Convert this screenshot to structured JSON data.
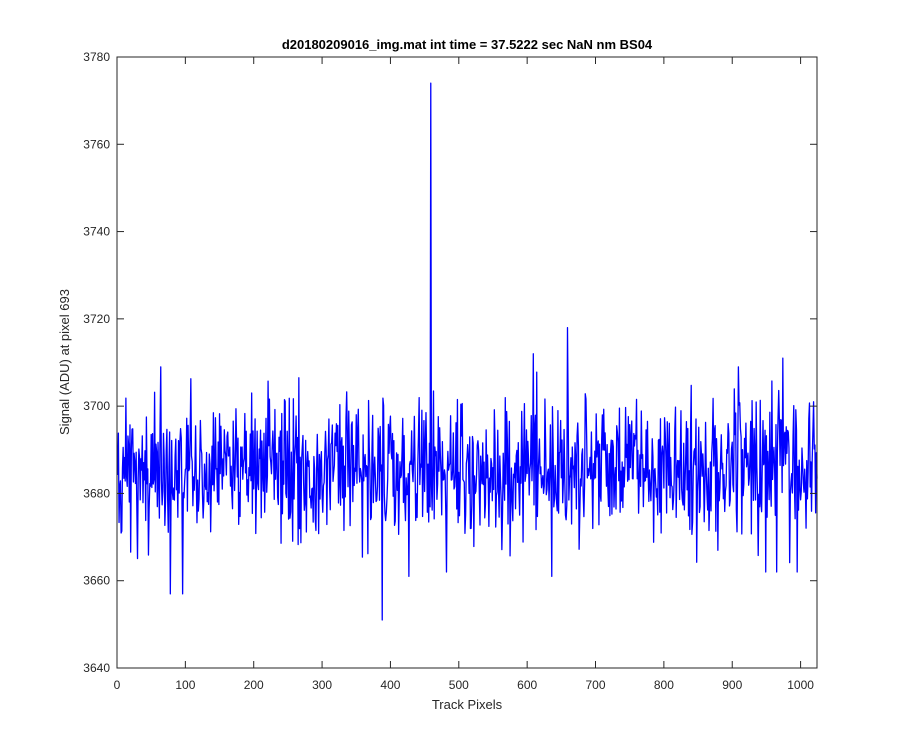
{
  "chart_data": {
    "type": "line",
    "title": "d20180209016_img.mat int time = 37.5222 sec  NaN nm BS04",
    "xlabel": "Track Pixels",
    "ylabel": "Signal (ADU) at pixel 693",
    "xlim": [
      0,
      1024
    ],
    "ylim": [
      3640,
      3780
    ],
    "xticks": [
      0,
      100,
      200,
      300,
      400,
      500,
      600,
      700,
      800,
      900,
      1000
    ],
    "yticks": [
      3640,
      3660,
      3680,
      3700,
      3720,
      3740,
      3760,
      3780
    ],
    "grid": false,
    "series": [
      {
        "color": "#0000ff",
        "x_start": 1,
        "x_step": 1,
        "count": 1024,
        "noise_mean": 3686,
        "noise_low": 3662,
        "noise_high": 3709,
        "peaks": [
          {
            "x": 388,
            "y": 3651
          },
          {
            "x": 459,
            "y": 3774
          },
          {
            "x": 659,
            "y": 3718
          },
          {
            "x": 609,
            "y": 3712
          },
          {
            "x": 974,
            "y": 3711
          },
          {
            "x": 64,
            "y": 3709
          },
          {
            "x": 78,
            "y": 3657
          },
          {
            "x": 96,
            "y": 3657
          },
          {
            "x": 636,
            "y": 3661
          },
          {
            "x": 427,
            "y": 3661
          },
          {
            "x": 965,
            "y": 3662
          },
          {
            "x": 949,
            "y": 3662
          }
        ]
      }
    ]
  }
}
